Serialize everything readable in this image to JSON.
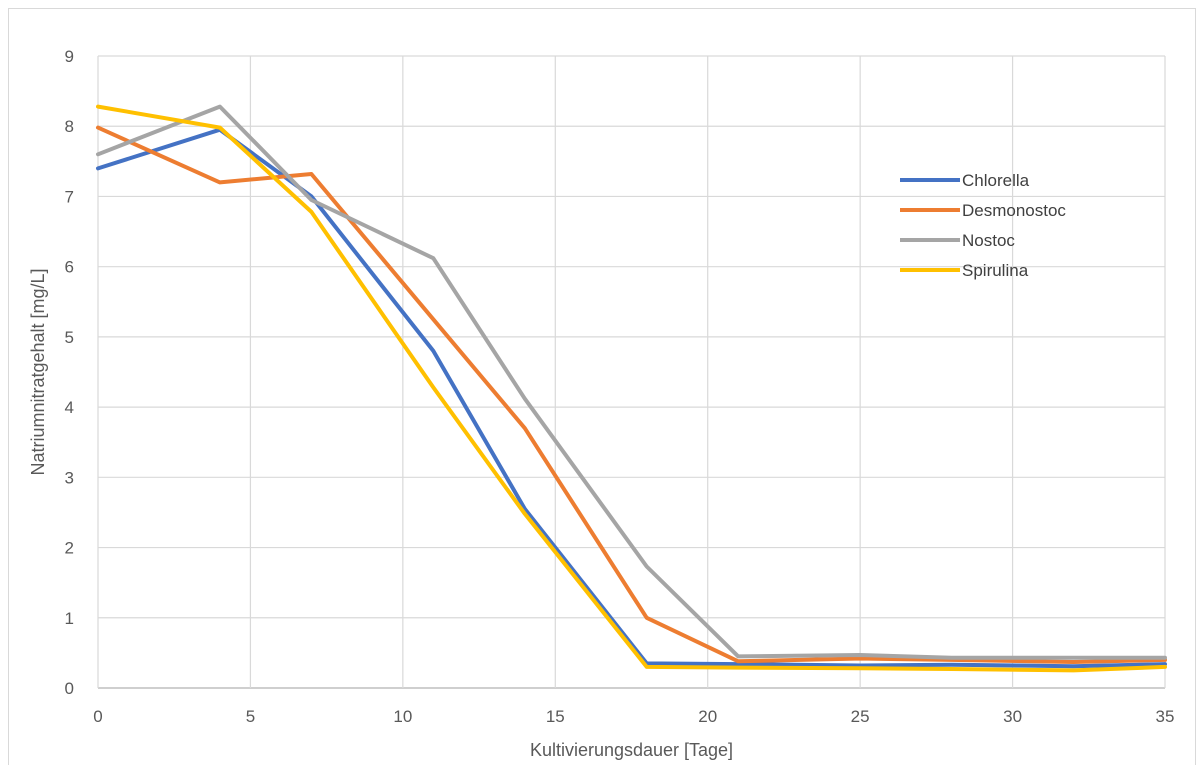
{
  "chart_data": {
    "type": "line",
    "title": "",
    "xlabel": "Kultivierungsdauer [Tage]",
    "ylabel": "Natriumnitratgehalt [mg/L]",
    "xlim": [
      0,
      35
    ],
    "ylim": [
      0,
      9
    ],
    "xticks": [
      0,
      5,
      10,
      15,
      20,
      25,
      30,
      35
    ],
    "yticks": [
      0,
      1,
      2,
      3,
      4,
      5,
      6,
      7,
      8,
      9
    ],
    "grid": true,
    "legend_position": "right-upper",
    "series": [
      {
        "name": "Chlorella",
        "color": "#4472C4",
        "points": [
          [
            0,
            7.4
          ],
          [
            4,
            7.95
          ],
          [
            7,
            7.0
          ],
          [
            11,
            4.8
          ],
          [
            14,
            2.55
          ],
          [
            18,
            0.35
          ],
          [
            21,
            0.34
          ],
          [
            25,
            0.32
          ],
          [
            28,
            0.33
          ],
          [
            32,
            0.31
          ],
          [
            35,
            0.34
          ]
        ]
      },
      {
        "name": "Desmonostoc",
        "color": "#ED7D31",
        "points": [
          [
            0,
            7.98
          ],
          [
            4,
            7.2
          ],
          [
            7,
            7.32
          ],
          [
            11,
            5.25
          ],
          [
            14,
            3.7
          ],
          [
            18,
            1.0
          ],
          [
            21,
            0.38
          ],
          [
            25,
            0.42
          ],
          [
            28,
            0.4
          ],
          [
            32,
            0.37
          ],
          [
            35,
            0.4
          ]
        ]
      },
      {
        "name": "Nostoc",
        "color": "#A5A5A5",
        "points": [
          [
            0,
            7.6
          ],
          [
            4,
            8.28
          ],
          [
            7,
            6.95
          ],
          [
            11,
            6.12
          ],
          [
            14,
            4.12
          ],
          [
            18,
            1.73
          ],
          [
            21,
            0.45
          ],
          [
            25,
            0.47
          ],
          [
            28,
            0.43
          ],
          [
            32,
            0.43
          ],
          [
            35,
            0.43
          ]
        ]
      },
      {
        "name": "Spirulina",
        "color": "#FFC000",
        "points": [
          [
            0,
            8.28
          ],
          [
            4,
            7.98
          ],
          [
            7,
            6.78
          ],
          [
            11,
            4.28
          ],
          [
            14,
            2.48
          ],
          [
            18,
            0.3
          ],
          [
            21,
            0.29
          ],
          [
            25,
            0.28
          ],
          [
            28,
            0.27
          ],
          [
            32,
            0.25
          ],
          [
            35,
            0.3
          ]
        ]
      }
    ]
  }
}
